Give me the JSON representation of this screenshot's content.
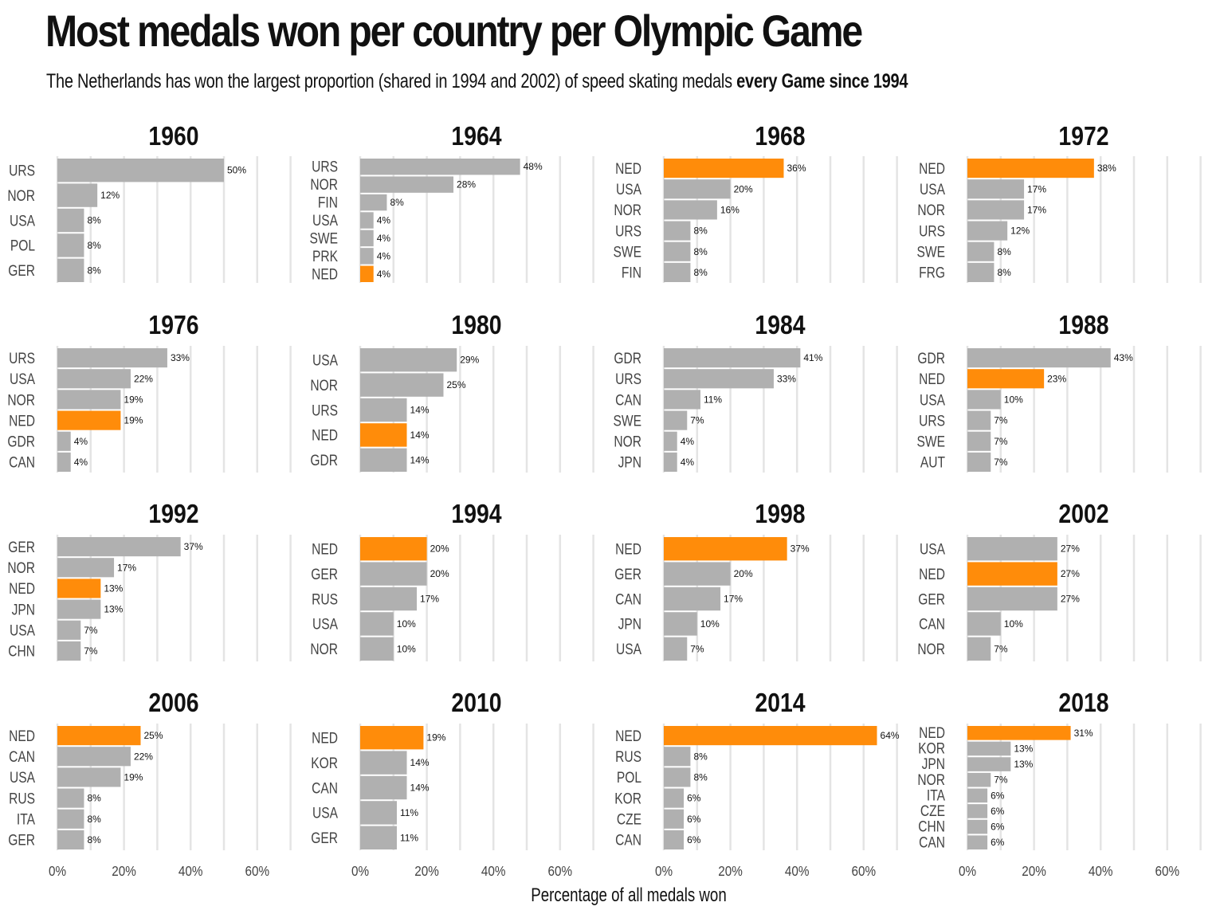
{
  "chart_data": {
    "type": "bar",
    "orientation": "horizontal",
    "title": "Most medals won per country per Olympic Game",
    "subtitle_plain": "The Netherlands has won the largest proportion (shared in 1994 and 2002) of speed skating medals ",
    "subtitle_bold": "every Game since 1994",
    "xlabel": "Percentage of all medals won",
    "ylabel": "",
    "xlim": [
      0,
      70
    ],
    "x_ticks": [
      "0%",
      "20%",
      "40%",
      "60%"
    ],
    "x_tick_values": [
      0,
      20,
      40,
      60
    ],
    "grid_values": [
      0,
      10,
      20,
      30,
      40,
      50,
      60,
      70
    ],
    "grid": true,
    "highlight_category": "NED",
    "colors": {
      "highlight": "#FF8C0A",
      "default": "#B0B0B0"
    },
    "panels": [
      {
        "year": "1960",
        "categories": [
          "URS",
          "NOR",
          "USA",
          "POL",
          "GER"
        ],
        "values": [
          50,
          12,
          8,
          8,
          8
        ]
      },
      {
        "year": "1964",
        "categories": [
          "URS",
          "NOR",
          "FIN",
          "USA",
          "SWE",
          "PRK",
          "NED"
        ],
        "values": [
          48,
          28,
          8,
          4,
          4,
          4,
          4
        ]
      },
      {
        "year": "1968",
        "categories": [
          "NED",
          "USA",
          "NOR",
          "URS",
          "SWE",
          "FIN"
        ],
        "values": [
          36,
          20,
          16,
          8,
          8,
          8
        ]
      },
      {
        "year": "1972",
        "categories": [
          "NED",
          "USA",
          "NOR",
          "URS",
          "SWE",
          "FRG"
        ],
        "values": [
          38,
          17,
          17,
          12,
          8,
          8
        ]
      },
      {
        "year": "1976",
        "categories": [
          "URS",
          "USA",
          "NOR",
          "NED",
          "GDR",
          "CAN"
        ],
        "values": [
          33,
          22,
          19,
          19,
          4,
          4
        ]
      },
      {
        "year": "1980",
        "categories": [
          "USA",
          "NOR",
          "URS",
          "NED",
          "GDR"
        ],
        "values": [
          29,
          25,
          14,
          14,
          14
        ]
      },
      {
        "year": "1984",
        "categories": [
          "GDR",
          "URS",
          "CAN",
          "SWE",
          "NOR",
          "JPN"
        ],
        "values": [
          41,
          33,
          11,
          7,
          4,
          4
        ]
      },
      {
        "year": "1988",
        "categories": [
          "GDR",
          "NED",
          "USA",
          "URS",
          "SWE",
          "AUT"
        ],
        "values": [
          43,
          23,
          10,
          7,
          7,
          7
        ]
      },
      {
        "year": "1992",
        "categories": [
          "GER",
          "NOR",
          "NED",
          "JPN",
          "USA",
          "CHN"
        ],
        "values": [
          37,
          17,
          13,
          13,
          7,
          7
        ]
      },
      {
        "year": "1994",
        "categories": [
          "NED",
          "GER",
          "RUS",
          "USA",
          "NOR"
        ],
        "values": [
          20,
          20,
          17,
          10,
          10
        ]
      },
      {
        "year": "1998",
        "categories": [
          "NED",
          "GER",
          "CAN",
          "JPN",
          "USA"
        ],
        "values": [
          37,
          20,
          17,
          10,
          7
        ]
      },
      {
        "year": "2002",
        "categories": [
          "USA",
          "NED",
          "GER",
          "CAN",
          "NOR"
        ],
        "values": [
          27,
          27,
          27,
          10,
          7
        ]
      },
      {
        "year": "2006",
        "categories": [
          "NED",
          "CAN",
          "USA",
          "RUS",
          "ITA",
          "GER"
        ],
        "values": [
          25,
          22,
          19,
          8,
          8,
          8
        ]
      },
      {
        "year": "2010",
        "categories": [
          "NED",
          "KOR",
          "CAN",
          "USA",
          "GER"
        ],
        "values": [
          19,
          14,
          14,
          11,
          11
        ]
      },
      {
        "year": "2014",
        "categories": [
          "NED",
          "RUS",
          "POL",
          "KOR",
          "CZE",
          "CAN"
        ],
        "values": [
          64,
          8,
          8,
          6,
          6,
          6
        ]
      },
      {
        "year": "2018",
        "categories": [
          "NED",
          "KOR",
          "JPN",
          "NOR",
          "ITA",
          "CZE",
          "CHN",
          "CAN"
        ],
        "values": [
          31,
          13,
          13,
          7,
          6,
          6,
          6,
          6
        ]
      }
    ]
  }
}
